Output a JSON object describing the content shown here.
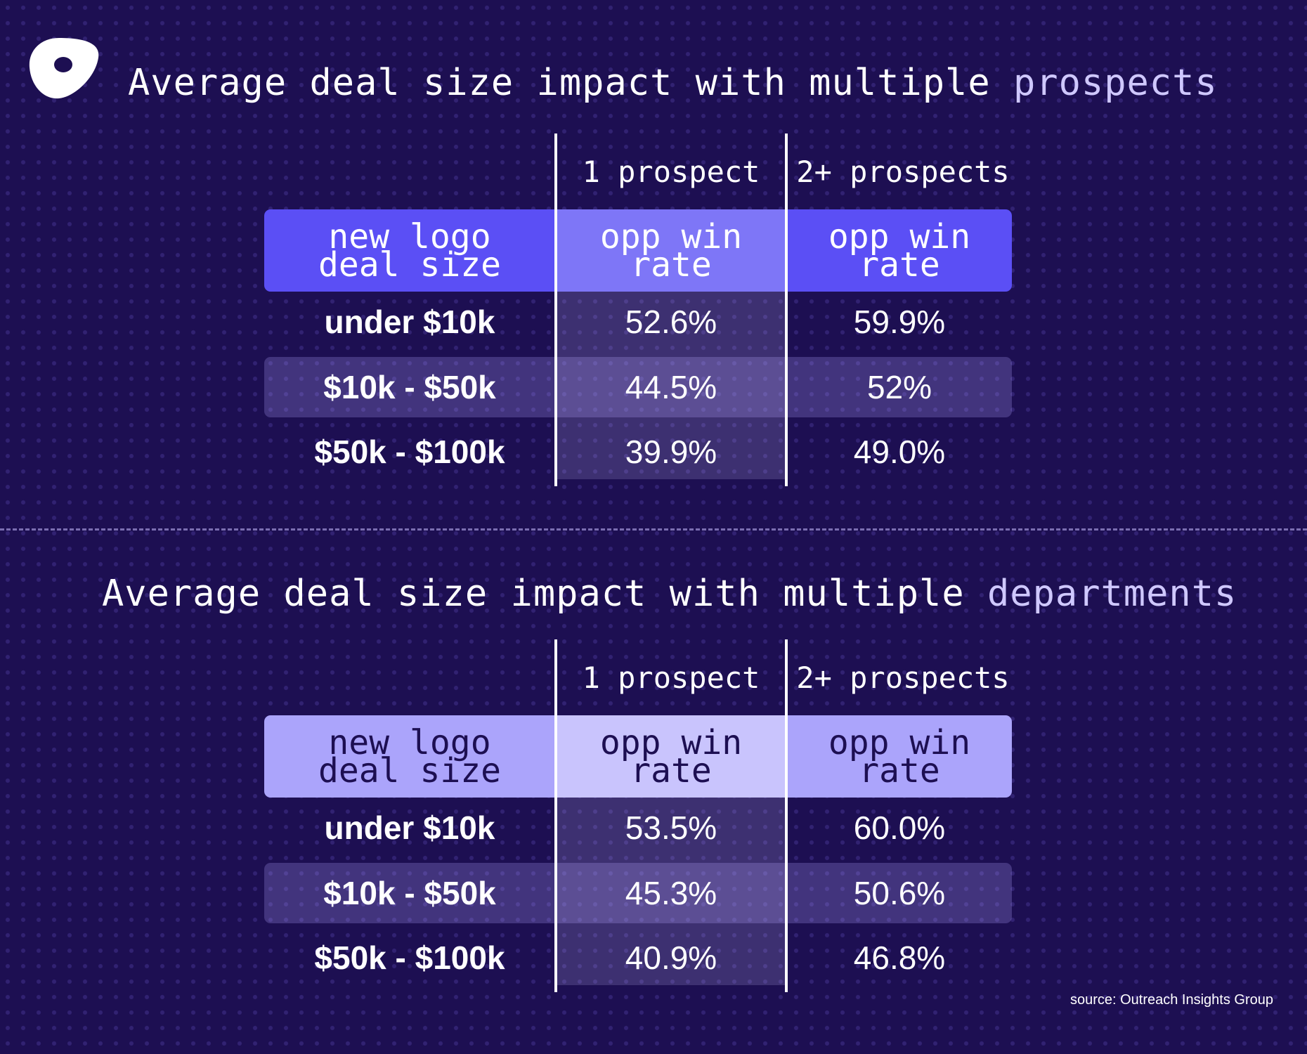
{
  "titles": {
    "top": {
      "main": "Average deal size impact with multiple ",
      "highlight": "prospects"
    },
    "bottom": {
      "main": "Average deal size impact with multiple ",
      "highlight": "departments"
    }
  },
  "colors": {
    "background": "#1d0f52",
    "table1_header": "#5b4ff5",
    "table1_header_mid": "#7e76f7",
    "table2_header": "#aba4fb",
    "table2_header_mid": "#c9c4fd",
    "highlight_text": "#cfc8ff"
  },
  "source": "source: Outreach Insights Group",
  "chart_data": [
    {
      "type": "table",
      "title": "Average deal size impact with multiple prospects",
      "column_groups": [
        "1 prospect",
        "2+ prospects"
      ],
      "headers": [
        "new logo\ndeal size",
        "opp win\nrate",
        "opp win\nrate"
      ],
      "rows": [
        [
          "under $10k",
          "52.6%",
          "59.9%"
        ],
        [
          "$10k - $50k",
          "44.5%",
          "52%"
        ],
        [
          "$50k - $100k",
          "39.9%",
          "49.0%"
        ]
      ]
    },
    {
      "type": "table",
      "title": "Average deal size impact with multiple departments",
      "column_groups": [
        "1 prospect",
        "2+ prospects"
      ],
      "headers": [
        "new logo\ndeal size",
        "opp win\nrate",
        "opp win\nrate"
      ],
      "rows": [
        [
          "under $10k",
          "53.5%",
          "60.0%"
        ],
        [
          "$10k - $50k",
          "45.3%",
          "50.6%"
        ],
        [
          "$50k - $100k",
          "40.9%",
          "46.8%"
        ]
      ]
    }
  ]
}
